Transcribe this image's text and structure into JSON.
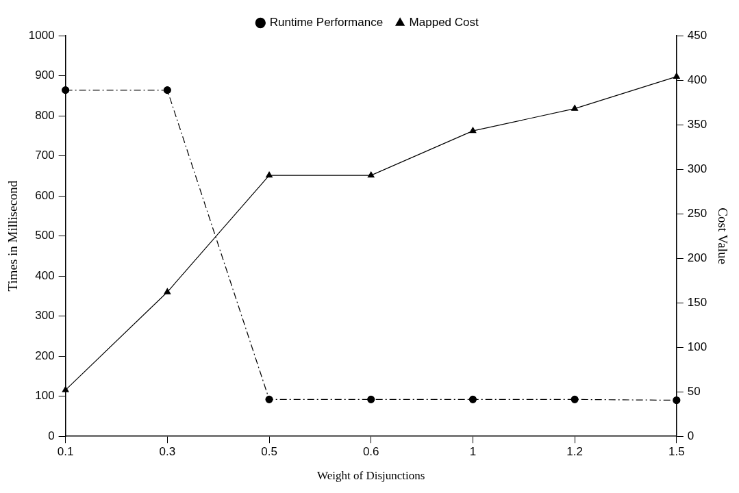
{
  "chart_data": {
    "type": "line",
    "xlabel": "Weight of Disjunctions",
    "ylabel": "Times in Millisecond",
    "y2label": "Cost Value",
    "categories": [
      "0.1",
      "0.3",
      "0.5",
      "0.6",
      "1",
      "1.2",
      "1.5"
    ],
    "series": [
      {
        "name": "Runtime Performance",
        "color": "#000000",
        "values": [
          864,
          864,
          92,
          92,
          92,
          92,
          90
        ],
        "marker": "circle",
        "line_style": "dashed"
      },
      {
        "name": "Mapped Cost",
        "color": "#000000",
        "values": [
          52,
          162,
          293,
          293,
          343,
          368,
          404
        ],
        "marker": "triangle",
        "line_style": "solid",
        "axis": "y2"
      }
    ],
    "ylim": [
      0,
      1000
    ],
    "yticks": [
      0,
      100,
      200,
      300,
      400,
      500,
      600,
      700,
      800,
      900,
      1000
    ],
    "y2lim": [
      0,
      450
    ],
    "y2ticks": [
      0,
      50,
      100,
      150,
      200,
      250,
      300,
      350,
      400,
      450
    ],
    "grid": false,
    "legend": "top"
  }
}
